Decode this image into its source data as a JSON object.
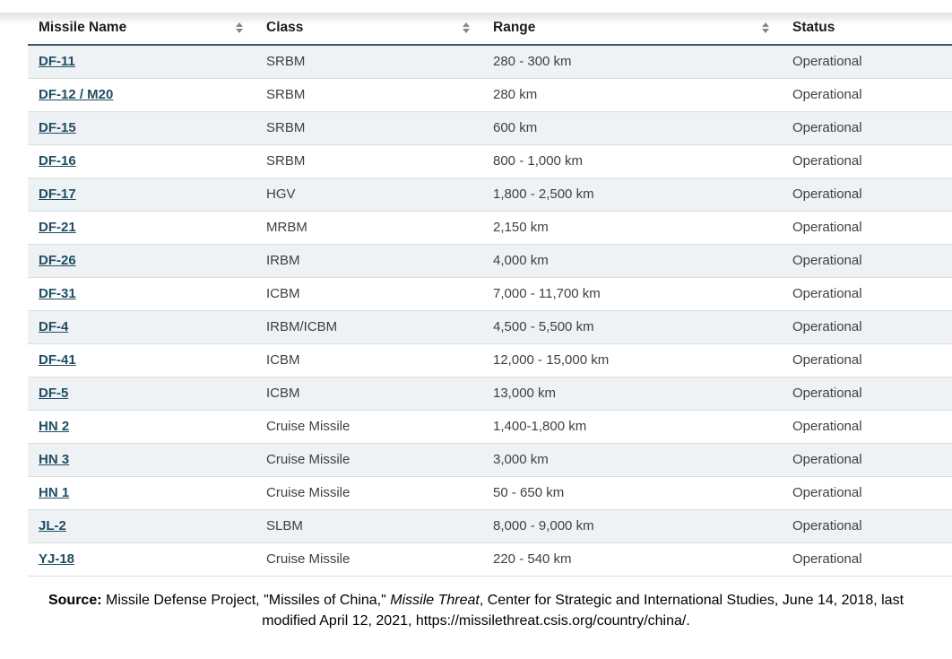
{
  "chart_data": {
    "type": "table",
    "columns": [
      {
        "label": "Missile Name",
        "sortable": true
      },
      {
        "label": "Class",
        "sortable": true
      },
      {
        "label": "Range",
        "sortable": true
      },
      {
        "label": "Status",
        "sortable": false
      }
    ],
    "rows": [
      [
        "DF-11",
        "SRBM",
        "280 - 300 km",
        "Operational"
      ],
      [
        "DF-12 / M20",
        "SRBM",
        "280 km",
        "Operational"
      ],
      [
        "DF-15",
        "SRBM",
        "600 km",
        "Operational"
      ],
      [
        "DF-16",
        "SRBM",
        "800 - 1,000 km",
        "Operational"
      ],
      [
        "DF-17",
        "HGV",
        "1,800 - 2,500 km",
        "Operational"
      ],
      [
        "DF-21",
        "MRBM",
        "2,150 km",
        "Operational"
      ],
      [
        "DF-26",
        "IRBM",
        "4,000 km",
        "Operational"
      ],
      [
        "DF-31",
        "ICBM",
        "7,000 - 11,700 km",
        "Operational"
      ],
      [
        "DF-4",
        "IRBM/ICBM",
        "4,500 - 5,500 km",
        "Operational"
      ],
      [
        "DF-41",
        "ICBM",
        "12,000 - 15,000 km",
        "Operational"
      ],
      [
        "DF-5",
        "ICBM",
        "13,000 km",
        "Operational"
      ],
      [
        "HN 2",
        "Cruise Missile",
        "1,400-1,800 km",
        "Operational"
      ],
      [
        "HN 3",
        "Cruise Missile",
        "3,000 km",
        "Operational"
      ],
      [
        "HN 1",
        "Cruise Missile",
        "50 - 650 km",
        "Operational"
      ],
      [
        "JL-2",
        "SLBM",
        "8,000 - 9,000 km",
        "Operational"
      ],
      [
        "YJ-18",
        "Cruise Missile",
        "220 - 540 km",
        "Operational"
      ]
    ]
  },
  "source_note": {
    "prefix": "Source: ",
    "before_italic": "Missile Defense Project, \"Missiles of China,\" ",
    "italic": "Missile Threat",
    "line1_rest": ", Center for Strategic and International Studies, June 14, 2018, last",
    "line2": "modified April 12, 2021, https://missilethreat.csis.org/country/china/."
  },
  "colors": {
    "link": "#1e4e63",
    "header_border": "#3a5866",
    "row_stripe": "#eff2f4",
    "row_border": "#dadee1",
    "sort_icon": "#7f8992",
    "body_text": "#3d4145"
  },
  "icons": {
    "sort": "sort-arrows-icon"
  }
}
